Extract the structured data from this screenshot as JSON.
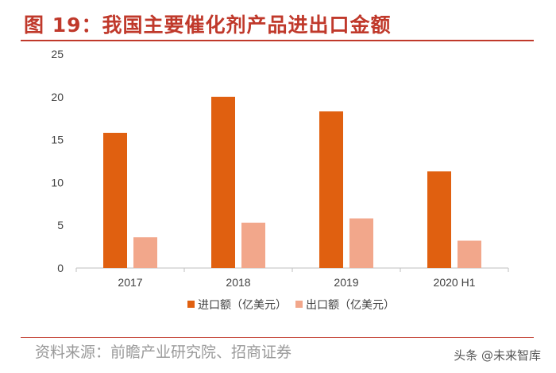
{
  "figure": {
    "title": "图 19：我国主要催化剂产品进出口金额",
    "source": "资料来源：前瞻产业研究院、招商证券",
    "watermark": "头条 @未来智库"
  },
  "colors": {
    "title": "#c0392b",
    "import": "#e06010",
    "export": "#f2a78b",
    "axis": "#bfbfbf"
  },
  "chart_data": {
    "type": "bar",
    "categories": [
      "2017",
      "2018",
      "2019",
      "2020 H1"
    ],
    "series": [
      {
        "name": "进口额（亿美元）",
        "values": [
          15.8,
          20.0,
          18.3,
          11.3
        ]
      },
      {
        "name": "出口额（亿美元）",
        "values": [
          3.6,
          5.3,
          5.8,
          3.2
        ]
      }
    ],
    "ylim": [
      0,
      25
    ],
    "yticks": [
      0,
      5,
      10,
      15,
      20,
      25
    ],
    "grid": false,
    "legend_position": "bottom-center",
    "xlabel": "",
    "ylabel": ""
  }
}
